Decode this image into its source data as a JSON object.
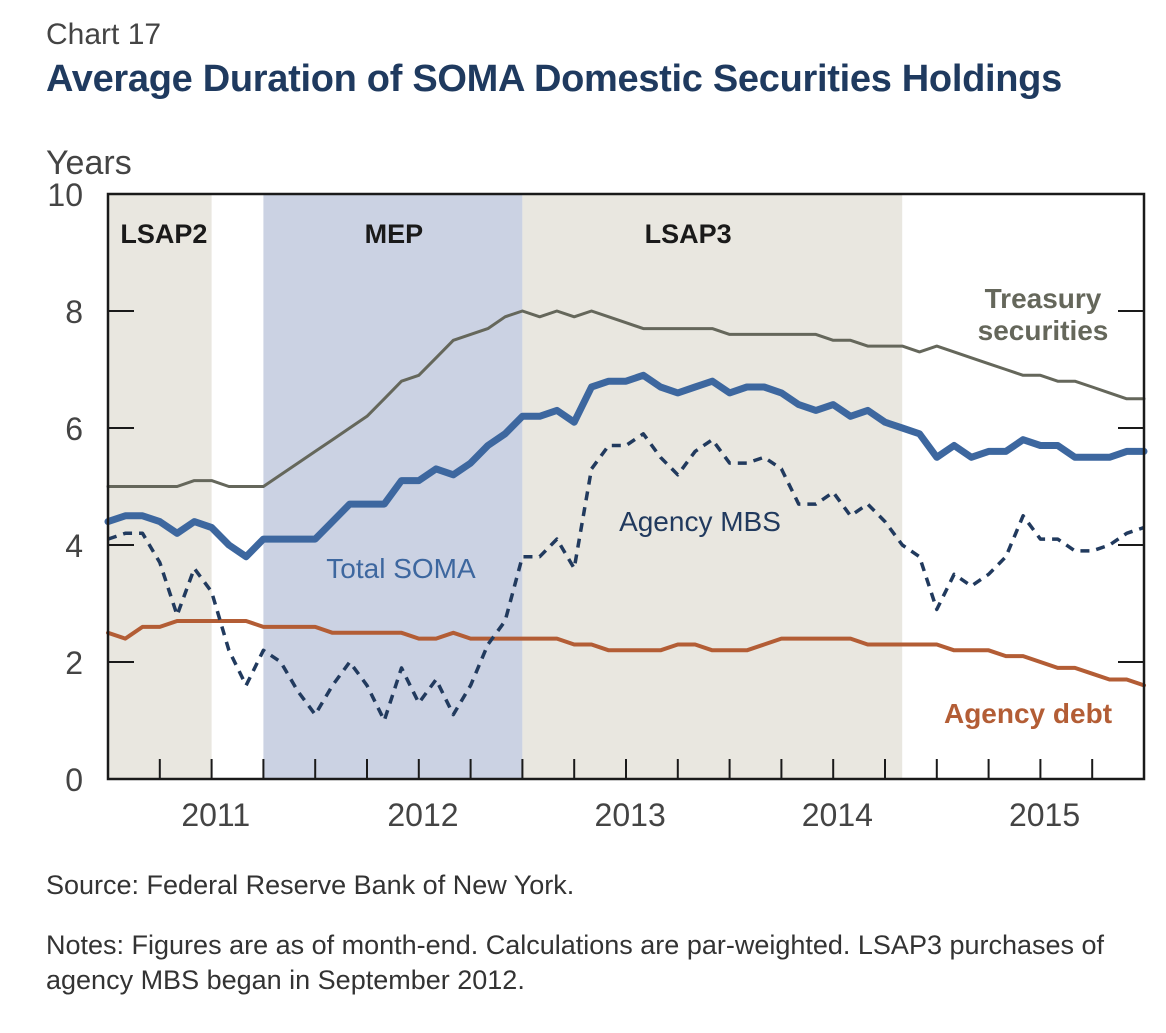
{
  "header": {
    "chart_number": "Chart 17",
    "title": "Average Duration of SOMA Domestic Securities Holdings"
  },
  "footer": {
    "source": "Source: Federal Reserve Bank of New York.",
    "notes": "Notes: Figures are as of month-end. Calculations are par-weighted. LSAP3 purchases of agency MBS began in September 2012."
  },
  "chart_data": {
    "type": "line",
    "ylabel": "Years",
    "ylim": [
      0,
      10
    ],
    "yticks": [
      0,
      2,
      4,
      6,
      8,
      10
    ],
    "x_start": 2010.5,
    "x_end": 2015.5,
    "x_step_months": 1,
    "year_ticks": [
      2011,
      2012,
      2013,
      2014,
      2015
    ],
    "quarter_ticks": [
      2010.75,
      2011.0,
      2011.25,
      2011.5,
      2011.75,
      2012.0,
      2012.25,
      2012.5,
      2012.75,
      2013.0,
      2013.25,
      2013.5,
      2013.75,
      2014.0,
      2014.25,
      2014.5,
      2014.75,
      2015.0,
      2015.25
    ],
    "colors": {
      "treasury": "#65675b",
      "total": "#3d679f",
      "mbs": "#213a5e",
      "agency_debt": "#b35d35",
      "shade_grey": "#e9e7e0",
      "shade_blue": "#cbd2e3"
    },
    "shaded_periods": [
      {
        "label": "LSAP2",
        "start": 2010.5,
        "end": 2011.0,
        "color": "#e9e7e0"
      },
      {
        "label": "MEP",
        "start": 2011.25,
        "end": 2012.5,
        "color": "#cbd2e3"
      },
      {
        "label": "LSAP3",
        "start": 2012.5,
        "end": 2014.333,
        "color": "#e9e7e0"
      }
    ],
    "series": [
      {
        "name": "Treasury securities",
        "label_lines": [
          "Treasury",
          "securities"
        ],
        "color_key": "treasury",
        "style": "solid",
        "width": 3,
        "values": [
          5.0,
          5.0,
          5.0,
          5.0,
          5.0,
          5.1,
          5.1,
          5.0,
          5.0,
          5.0,
          5.2,
          5.4,
          5.6,
          5.8,
          6.0,
          6.2,
          6.5,
          6.8,
          6.9,
          7.2,
          7.5,
          7.6,
          7.7,
          7.9,
          8.0,
          7.9,
          8.0,
          7.9,
          8.0,
          7.9,
          7.8,
          7.7,
          7.7,
          7.7,
          7.7,
          7.7,
          7.6,
          7.6,
          7.6,
          7.6,
          7.6,
          7.6,
          7.5,
          7.5,
          7.4,
          7.4,
          7.4,
          7.3,
          7.4,
          7.3,
          7.2,
          7.1,
          7.0,
          6.9,
          6.9,
          6.8,
          6.8,
          6.7,
          6.6,
          6.5,
          6.5
        ]
      },
      {
        "name": "Total SOMA",
        "label_lines": [
          "Total SOMA"
        ],
        "color_key": "total",
        "style": "solid",
        "width": 7,
        "values": [
          4.4,
          4.5,
          4.5,
          4.4,
          4.2,
          4.4,
          4.3,
          4.0,
          3.8,
          4.1,
          4.1,
          4.1,
          4.1,
          4.4,
          4.7,
          4.7,
          4.7,
          5.1,
          5.1,
          5.3,
          5.2,
          5.4,
          5.7,
          5.9,
          6.2,
          6.2,
          6.3,
          6.1,
          6.7,
          6.8,
          6.8,
          6.9,
          6.7,
          6.6,
          6.7,
          6.8,
          6.6,
          6.7,
          6.7,
          6.6,
          6.4,
          6.3,
          6.4,
          6.2,
          6.3,
          6.1,
          6.0,
          5.9,
          5.5,
          5.7,
          5.5,
          5.6,
          5.6,
          5.8,
          5.7,
          5.7,
          5.5,
          5.5,
          5.5,
          5.6,
          5.6
        ]
      },
      {
        "name": "Agency MBS",
        "label_lines": [
          "Agency MBS"
        ],
        "color_key": "mbs",
        "style": "dashed",
        "width": 3.5,
        "values": [
          4.1,
          4.2,
          4.2,
          3.7,
          2.8,
          3.6,
          3.2,
          2.2,
          1.6,
          2.2,
          2.0,
          1.5,
          1.1,
          1.6,
          2.0,
          1.6,
          1.0,
          1.9,
          1.3,
          1.7,
          1.1,
          1.6,
          2.3,
          2.7,
          3.8,
          3.8,
          4.1,
          3.6,
          5.3,
          5.7,
          5.7,
          5.9,
          5.5,
          5.2,
          5.6,
          5.8,
          5.4,
          5.4,
          5.5,
          5.3,
          4.7,
          4.7,
          4.9,
          4.5,
          4.7,
          4.4,
          4.0,
          3.8,
          2.9,
          3.5,
          3.3,
          3.5,
          3.8,
          4.5,
          4.1,
          4.1,
          3.9,
          3.9,
          4.0,
          4.2,
          4.3
        ]
      },
      {
        "name": "Agency debt",
        "label_lines": [
          "Agency debt"
        ],
        "color_key": "agency_debt",
        "style": "solid",
        "width": 4,
        "values": [
          2.5,
          2.4,
          2.6,
          2.6,
          2.7,
          2.7,
          2.7,
          2.7,
          2.7,
          2.6,
          2.6,
          2.6,
          2.6,
          2.5,
          2.5,
          2.5,
          2.5,
          2.5,
          2.4,
          2.4,
          2.5,
          2.4,
          2.4,
          2.4,
          2.4,
          2.4,
          2.4,
          2.3,
          2.3,
          2.2,
          2.2,
          2.2,
          2.2,
          2.3,
          2.3,
          2.2,
          2.2,
          2.2,
          2.3,
          2.4,
          2.4,
          2.4,
          2.4,
          2.4,
          2.3,
          2.3,
          2.3,
          2.3,
          2.3,
          2.2,
          2.2,
          2.2,
          2.1,
          2.1,
          2.0,
          1.9,
          1.9,
          1.8,
          1.7,
          1.7,
          1.6
        ]
      }
    ]
  }
}
